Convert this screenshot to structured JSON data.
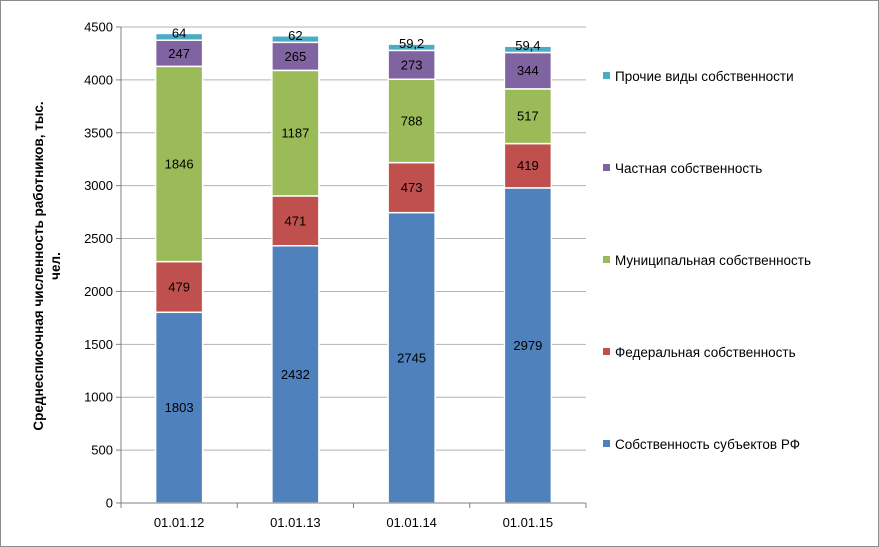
{
  "chart_data": {
    "type": "bar",
    "stacked": true,
    "categories": [
      "01.01.12",
      "01.01.13",
      "01.01.14",
      "01.01.15"
    ],
    "series": [
      {
        "name": "Собственность субъектов РФ",
        "color": "#4f81bd",
        "values": [
          1803,
          2432,
          2745,
          2979
        ],
        "labels": [
          "1803",
          "2432",
          "2745",
          "2979"
        ]
      },
      {
        "name": "Федеральная собственность",
        "color": "#c0504d",
        "values": [
          479,
          471,
          473,
          419
        ],
        "labels": [
          "479",
          "471",
          "473",
          "419"
        ]
      },
      {
        "name": "Муниципальная собственность",
        "color": "#9bbb59",
        "values": [
          1846,
          1187,
          788,
          517
        ],
        "labels": [
          "1846",
          "1187",
          "788",
          "517"
        ]
      },
      {
        "name": "Частная собственность",
        "color": "#8064a2",
        "values": [
          247,
          265,
          273,
          344
        ],
        "labels": [
          "247",
          "265",
          "273",
          "344"
        ]
      },
      {
        "name": "Прочие виды собственности",
        "color": "#4bacc6",
        "values": [
          64,
          62,
          59.2,
          59.4
        ],
        "labels": [
          "64",
          "62",
          "59,2",
          "59,4"
        ]
      }
    ],
    "legend_order": [
      4,
      3,
      2,
      1,
      0
    ],
    "legend_position": "right",
    "ylabel_lines": [
      "Среднесписочная численность работников,  тыс.",
      "чел."
    ],
    "ylim": [
      0,
      4500
    ],
    "yticks": [
      0,
      500,
      1000,
      1500,
      2000,
      2500,
      3000,
      3500,
      4000,
      4500
    ],
    "grid": true
  }
}
